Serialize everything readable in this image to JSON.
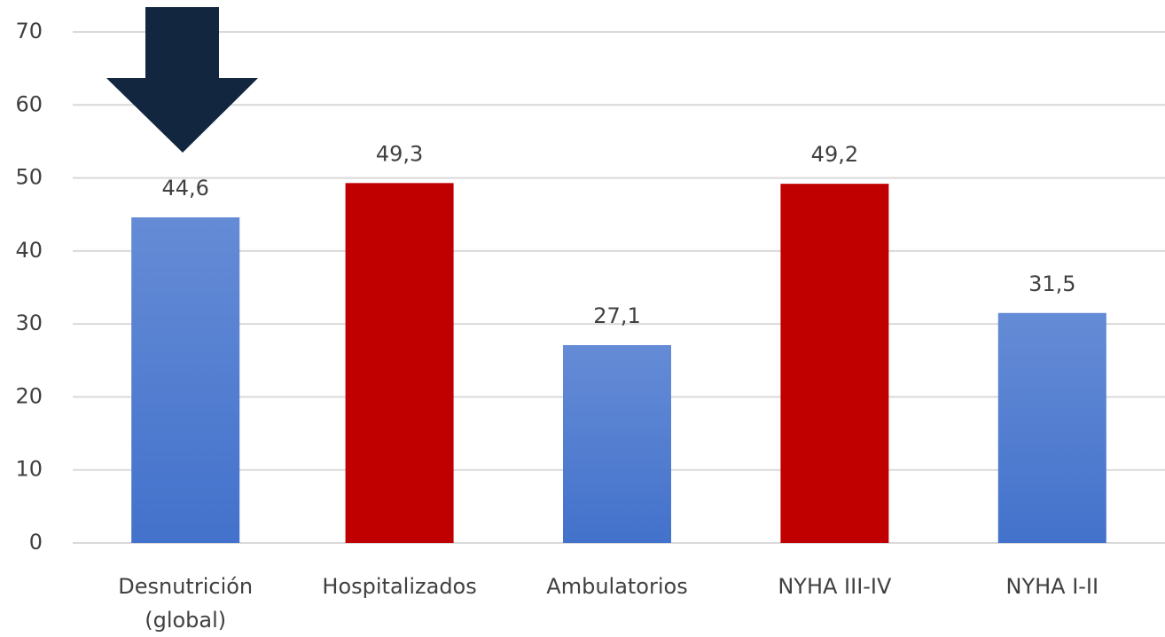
{
  "chart_data": {
    "type": "bar",
    "categories": [
      "Desnutrición (global)",
      "Hospitalizados",
      "Ambulatorios",
      "NYHA III-IV",
      "NYHA I-II"
    ],
    "values": [
      44.6,
      49.3,
      27.1,
      49.2,
      31.5
    ],
    "value_labels": [
      "44,6",
      "49,3",
      "27,1",
      "49,2",
      "31,5"
    ],
    "colors": [
      "#4372cc",
      "#c00000",
      "#4372cc",
      "#c00000",
      "#4372cc"
    ],
    "ylim": [
      0,
      70
    ],
    "yticks": [
      0,
      10,
      20,
      30,
      40,
      50,
      60,
      70
    ],
    "grid": true
  }
}
